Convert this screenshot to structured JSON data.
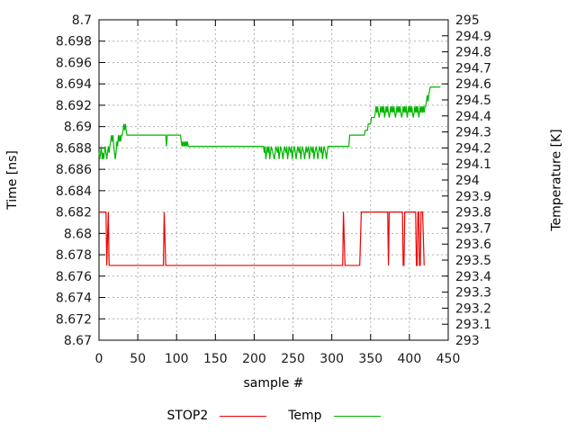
{
  "figure": {
    "background": "#ffffff",
    "border_color": "#000000",
    "grid_color": "#b0b0b0",
    "tick_label_color": "#1a1a1a"
  },
  "axes": {
    "x": {
      "label": "sample #",
      "min": 0,
      "max": 450,
      "tick_values": [
        0,
        50,
        100,
        150,
        200,
        250,
        300,
        350,
        400,
        450
      ],
      "tick_labels": [
        "0",
        "50",
        "100",
        "150",
        "200",
        "250",
        "300",
        "350",
        "400",
        "450"
      ]
    },
    "y_left": {
      "label": "Time [ns]",
      "min": 8.67,
      "max": 8.7,
      "tick_values": [
        8.67,
        8.672,
        8.674,
        8.676,
        8.678,
        8.68,
        8.682,
        8.684,
        8.686,
        8.688,
        8.69,
        8.692,
        8.694,
        8.696,
        8.698,
        8.7
      ],
      "tick_labels": [
        "8.67",
        "8.672",
        "8.674",
        "8.676",
        "8.678",
        "8.68",
        "8.682",
        "8.684",
        "8.686",
        "8.688",
        "8.69",
        "8.692",
        "8.694",
        "8.696",
        "8.698",
        "8.7"
      ]
    },
    "y_right": {
      "label": "Temperature [K]",
      "min": 293,
      "max": 295,
      "tick_values": [
        293,
        293.1,
        293.2,
        293.3,
        293.4,
        293.5,
        293.6,
        293.7,
        293.8,
        293.9,
        294,
        294.1,
        294.2,
        294.3,
        294.4,
        294.5,
        294.6,
        294.7,
        294.8,
        294.9,
        295
      ],
      "tick_labels": [
        "293",
        "293.1",
        "293.2",
        "293.3",
        "293.4",
        "293.5",
        "293.6",
        "293.7",
        "293.8",
        "293.9",
        "294",
        "294.1",
        "294.2",
        "294.3",
        "294.4",
        "294.5",
        "294.6",
        "294.7",
        "294.8",
        "294.9",
        "295"
      ]
    }
  },
  "legend": {
    "items": [
      {
        "label": "STOP2",
        "color": "#ee0000"
      },
      {
        "label": "Temp",
        "color": "#00b400"
      }
    ]
  },
  "chart_data": {
    "type": "line",
    "title": "",
    "xlabel": "sample #",
    "ylabel_left": "Time [ns]",
    "ylabel_right": "Temperature [K]",
    "xlim": [
      0,
      450
    ],
    "ylim_left": [
      8.67,
      8.7
    ],
    "ylim_right": [
      293,
      295
    ],
    "grid": true,
    "legend_position": "below",
    "series": [
      {
        "name": "STOP2",
        "axis": "left",
        "color": "#ee0000",
        "points": [
          [
            0,
            8.682
          ],
          [
            9,
            8.682
          ],
          [
            10,
            8.677
          ],
          [
            11,
            8.6795
          ],
          [
            12,
            8.682
          ],
          [
            13,
            8.677
          ],
          [
            83,
            8.677
          ],
          [
            84,
            8.682
          ],
          [
            85,
            8.6795
          ],
          [
            86,
            8.677
          ],
          [
            314,
            8.677
          ],
          [
            315,
            8.682
          ],
          [
            316,
            8.6795
          ],
          [
            317,
            8.677
          ],
          [
            336,
            8.677
          ],
          [
            337,
            8.6795
          ],
          [
            338,
            8.682
          ],
          [
            372,
            8.682
          ],
          [
            373,
            8.677
          ],
          [
            374,
            8.682
          ],
          [
            391,
            8.682
          ],
          [
            392,
            8.677
          ],
          [
            393,
            8.677
          ],
          [
            394,
            8.682
          ],
          [
            408,
            8.682
          ],
          [
            409,
            8.677
          ],
          [
            410,
            8.677
          ],
          [
            411,
            8.682
          ],
          [
            412,
            8.682
          ],
          [
            413,
            8.677
          ],
          [
            414,
            8.677
          ],
          [
            415,
            8.682
          ],
          [
            417,
            8.682
          ],
          [
            418,
            8.6795
          ],
          [
            419,
            8.677
          ]
        ]
      },
      {
        "name": "Temp",
        "axis": "right",
        "color": "#00b400",
        "points": [
          [
            0,
            294.17
          ],
          [
            1,
            294.13
          ],
          [
            2,
            294.17
          ],
          [
            3,
            294.21
          ],
          [
            4,
            294.13
          ],
          [
            5,
            294.17
          ],
          [
            6,
            294.13
          ],
          [
            7,
            294.17
          ],
          [
            8,
            294.21
          ],
          [
            9,
            294.17
          ],
          [
            10,
            294.13
          ],
          [
            11,
            294.17
          ],
          [
            12,
            294.21
          ],
          [
            13,
            294.17
          ],
          [
            14,
            294.21
          ],
          [
            15,
            294.24
          ],
          [
            16,
            294.28
          ],
          [
            17,
            294.24
          ],
          [
            18,
            294.28
          ],
          [
            19,
            294.21
          ],
          [
            20,
            294.17
          ],
          [
            21,
            294.13
          ],
          [
            22,
            294.17
          ],
          [
            23,
            294.24
          ],
          [
            24,
            294.21
          ],
          [
            25,
            294.28
          ],
          [
            26,
            294.24
          ],
          [
            27,
            294.28
          ],
          [
            28,
            294.24
          ],
          [
            29,
            294.28
          ],
          [
            30,
            294.28
          ],
          [
            31,
            294.31
          ],
          [
            32,
            294.35
          ],
          [
            33,
            294.31
          ],
          [
            34,
            294.35
          ],
          [
            35,
            294.31
          ],
          [
            36,
            294.28
          ],
          [
            86,
            294.28
          ],
          [
            87,
            294.21
          ],
          [
            88,
            294.28
          ],
          [
            105,
            294.28
          ],
          [
            106,
            294.24
          ],
          [
            107,
            294.21
          ],
          [
            108,
            294.24
          ],
          [
            109,
            294.21
          ],
          [
            110,
            294.24
          ],
          [
            111,
            294.21
          ],
          [
            112,
            294.24
          ],
          [
            113,
            294.21
          ],
          [
            114,
            294.24
          ],
          [
            115,
            294.21
          ],
          [
            212,
            294.21
          ],
          [
            213,
            294.17
          ],
          [
            214,
            294.21
          ],
          [
            215,
            294.13
          ],
          [
            216,
            294.17
          ],
          [
            217,
            294.21
          ],
          [
            218,
            294.17
          ],
          [
            219,
            294.21
          ],
          [
            220,
            294.13
          ],
          [
            221,
            294.17
          ],
          [
            222,
            294.21
          ],
          [
            224,
            294.17
          ],
          [
            226,
            294.13
          ],
          [
            227,
            294.17
          ],
          [
            228,
            294.21
          ],
          [
            230,
            294.17
          ],
          [
            231,
            294.21
          ],
          [
            232,
            294.13
          ],
          [
            233,
            294.17
          ],
          [
            234,
            294.21
          ],
          [
            236,
            294.17
          ],
          [
            237,
            294.13
          ],
          [
            238,
            294.17
          ],
          [
            239,
            294.21
          ],
          [
            241,
            294.17
          ],
          [
            242,
            294.21
          ],
          [
            243,
            294.13
          ],
          [
            244,
            294.17
          ],
          [
            245,
            294.21
          ],
          [
            247,
            294.17
          ],
          [
            248,
            294.21
          ],
          [
            249,
            294.13
          ],
          [
            250,
            294.17
          ],
          [
            252,
            294.21
          ],
          [
            253,
            294.17
          ],
          [
            254,
            294.13
          ],
          [
            255,
            294.17
          ],
          [
            256,
            294.21
          ],
          [
            258,
            294.17
          ],
          [
            259,
            294.21
          ],
          [
            260,
            294.13
          ],
          [
            261,
            294.17
          ],
          [
            262,
            294.21
          ],
          [
            264,
            294.17
          ],
          [
            265,
            294.13
          ],
          [
            266,
            294.17
          ],
          [
            267,
            294.21
          ],
          [
            268,
            294.17
          ],
          [
            270,
            294.21
          ],
          [
            271,
            294.13
          ],
          [
            272,
            294.17
          ],
          [
            273,
            294.21
          ],
          [
            275,
            294.17
          ],
          [
            276,
            294.21
          ],
          [
            277,
            294.13
          ],
          [
            278,
            294.17
          ],
          [
            280,
            294.21
          ],
          [
            281,
            294.17
          ],
          [
            282,
            294.13
          ],
          [
            283,
            294.17
          ],
          [
            284,
            294.21
          ],
          [
            286,
            294.17
          ],
          [
            287,
            294.21
          ],
          [
            288,
            294.13
          ],
          [
            289,
            294.17
          ],
          [
            290,
            294.21
          ],
          [
            292,
            294.17
          ],
          [
            293,
            294.13
          ],
          [
            294,
            294.17
          ],
          [
            295,
            294.21
          ],
          [
            322,
            294.21
          ],
          [
            323,
            294.28
          ],
          [
            342,
            294.28
          ],
          [
            343,
            294.31
          ],
          [
            346,
            294.31
          ],
          [
            347,
            294.35
          ],
          [
            350,
            294.35
          ],
          [
            351,
            294.39
          ],
          [
            355,
            294.39
          ],
          [
            356,
            294.42
          ],
          [
            357,
            294.46
          ],
          [
            358,
            294.42
          ],
          [
            359,
            294.46
          ],
          [
            360,
            294.42
          ],
          [
            361,
            294.39
          ],
          [
            362,
            294.42
          ],
          [
            363,
            294.46
          ],
          [
            364,
            294.42
          ],
          [
            365,
            294.46
          ],
          [
            366,
            294.42
          ],
          [
            367,
            294.46
          ],
          [
            368,
            294.39
          ],
          [
            369,
            294.42
          ],
          [
            370,
            294.46
          ],
          [
            371,
            294.42
          ],
          [
            372,
            294.46
          ],
          [
            373,
            294.42
          ],
          [
            374,
            294.39
          ],
          [
            375,
            294.42
          ],
          [
            376,
            294.46
          ],
          [
            377,
            294.42
          ],
          [
            378,
            294.46
          ],
          [
            379,
            294.42
          ],
          [
            380,
            294.46
          ],
          [
            381,
            294.42
          ],
          [
            382,
            294.39
          ],
          [
            383,
            294.42
          ],
          [
            384,
            294.46
          ],
          [
            385,
            294.42
          ],
          [
            386,
            294.46
          ],
          [
            387,
            294.42
          ],
          [
            388,
            294.46
          ],
          [
            389,
            294.42
          ],
          [
            390,
            294.39
          ],
          [
            391,
            294.42
          ],
          [
            392,
            294.46
          ],
          [
            393,
            294.42
          ],
          [
            394,
            294.46
          ],
          [
            395,
            294.42
          ],
          [
            396,
            294.46
          ],
          [
            397,
            294.39
          ],
          [
            398,
            294.42
          ],
          [
            399,
            294.46
          ],
          [
            400,
            294.42
          ],
          [
            401,
            294.46
          ],
          [
            402,
            294.42
          ],
          [
            403,
            294.46
          ],
          [
            404,
            294.42
          ],
          [
            405,
            294.39
          ],
          [
            406,
            294.42
          ],
          [
            407,
            294.46
          ],
          [
            408,
            294.42
          ],
          [
            409,
            294.46
          ],
          [
            410,
            294.42
          ],
          [
            411,
            294.46
          ],
          [
            412,
            294.39
          ],
          [
            413,
            294.42
          ],
          [
            414,
            294.46
          ],
          [
            415,
            294.42
          ],
          [
            416,
            294.46
          ],
          [
            417,
            294.42
          ],
          [
            418,
            294.46
          ],
          [
            419,
            294.42
          ],
          [
            420,
            294.46
          ],
          [
            421,
            294.46
          ],
          [
            422,
            294.49
          ],
          [
            423,
            294.53
          ],
          [
            424,
            294.49
          ],
          [
            425,
            294.53
          ],
          [
            426,
            294.56
          ],
          [
            427,
            294.58
          ],
          [
            440,
            294.58
          ]
        ]
      }
    ]
  }
}
